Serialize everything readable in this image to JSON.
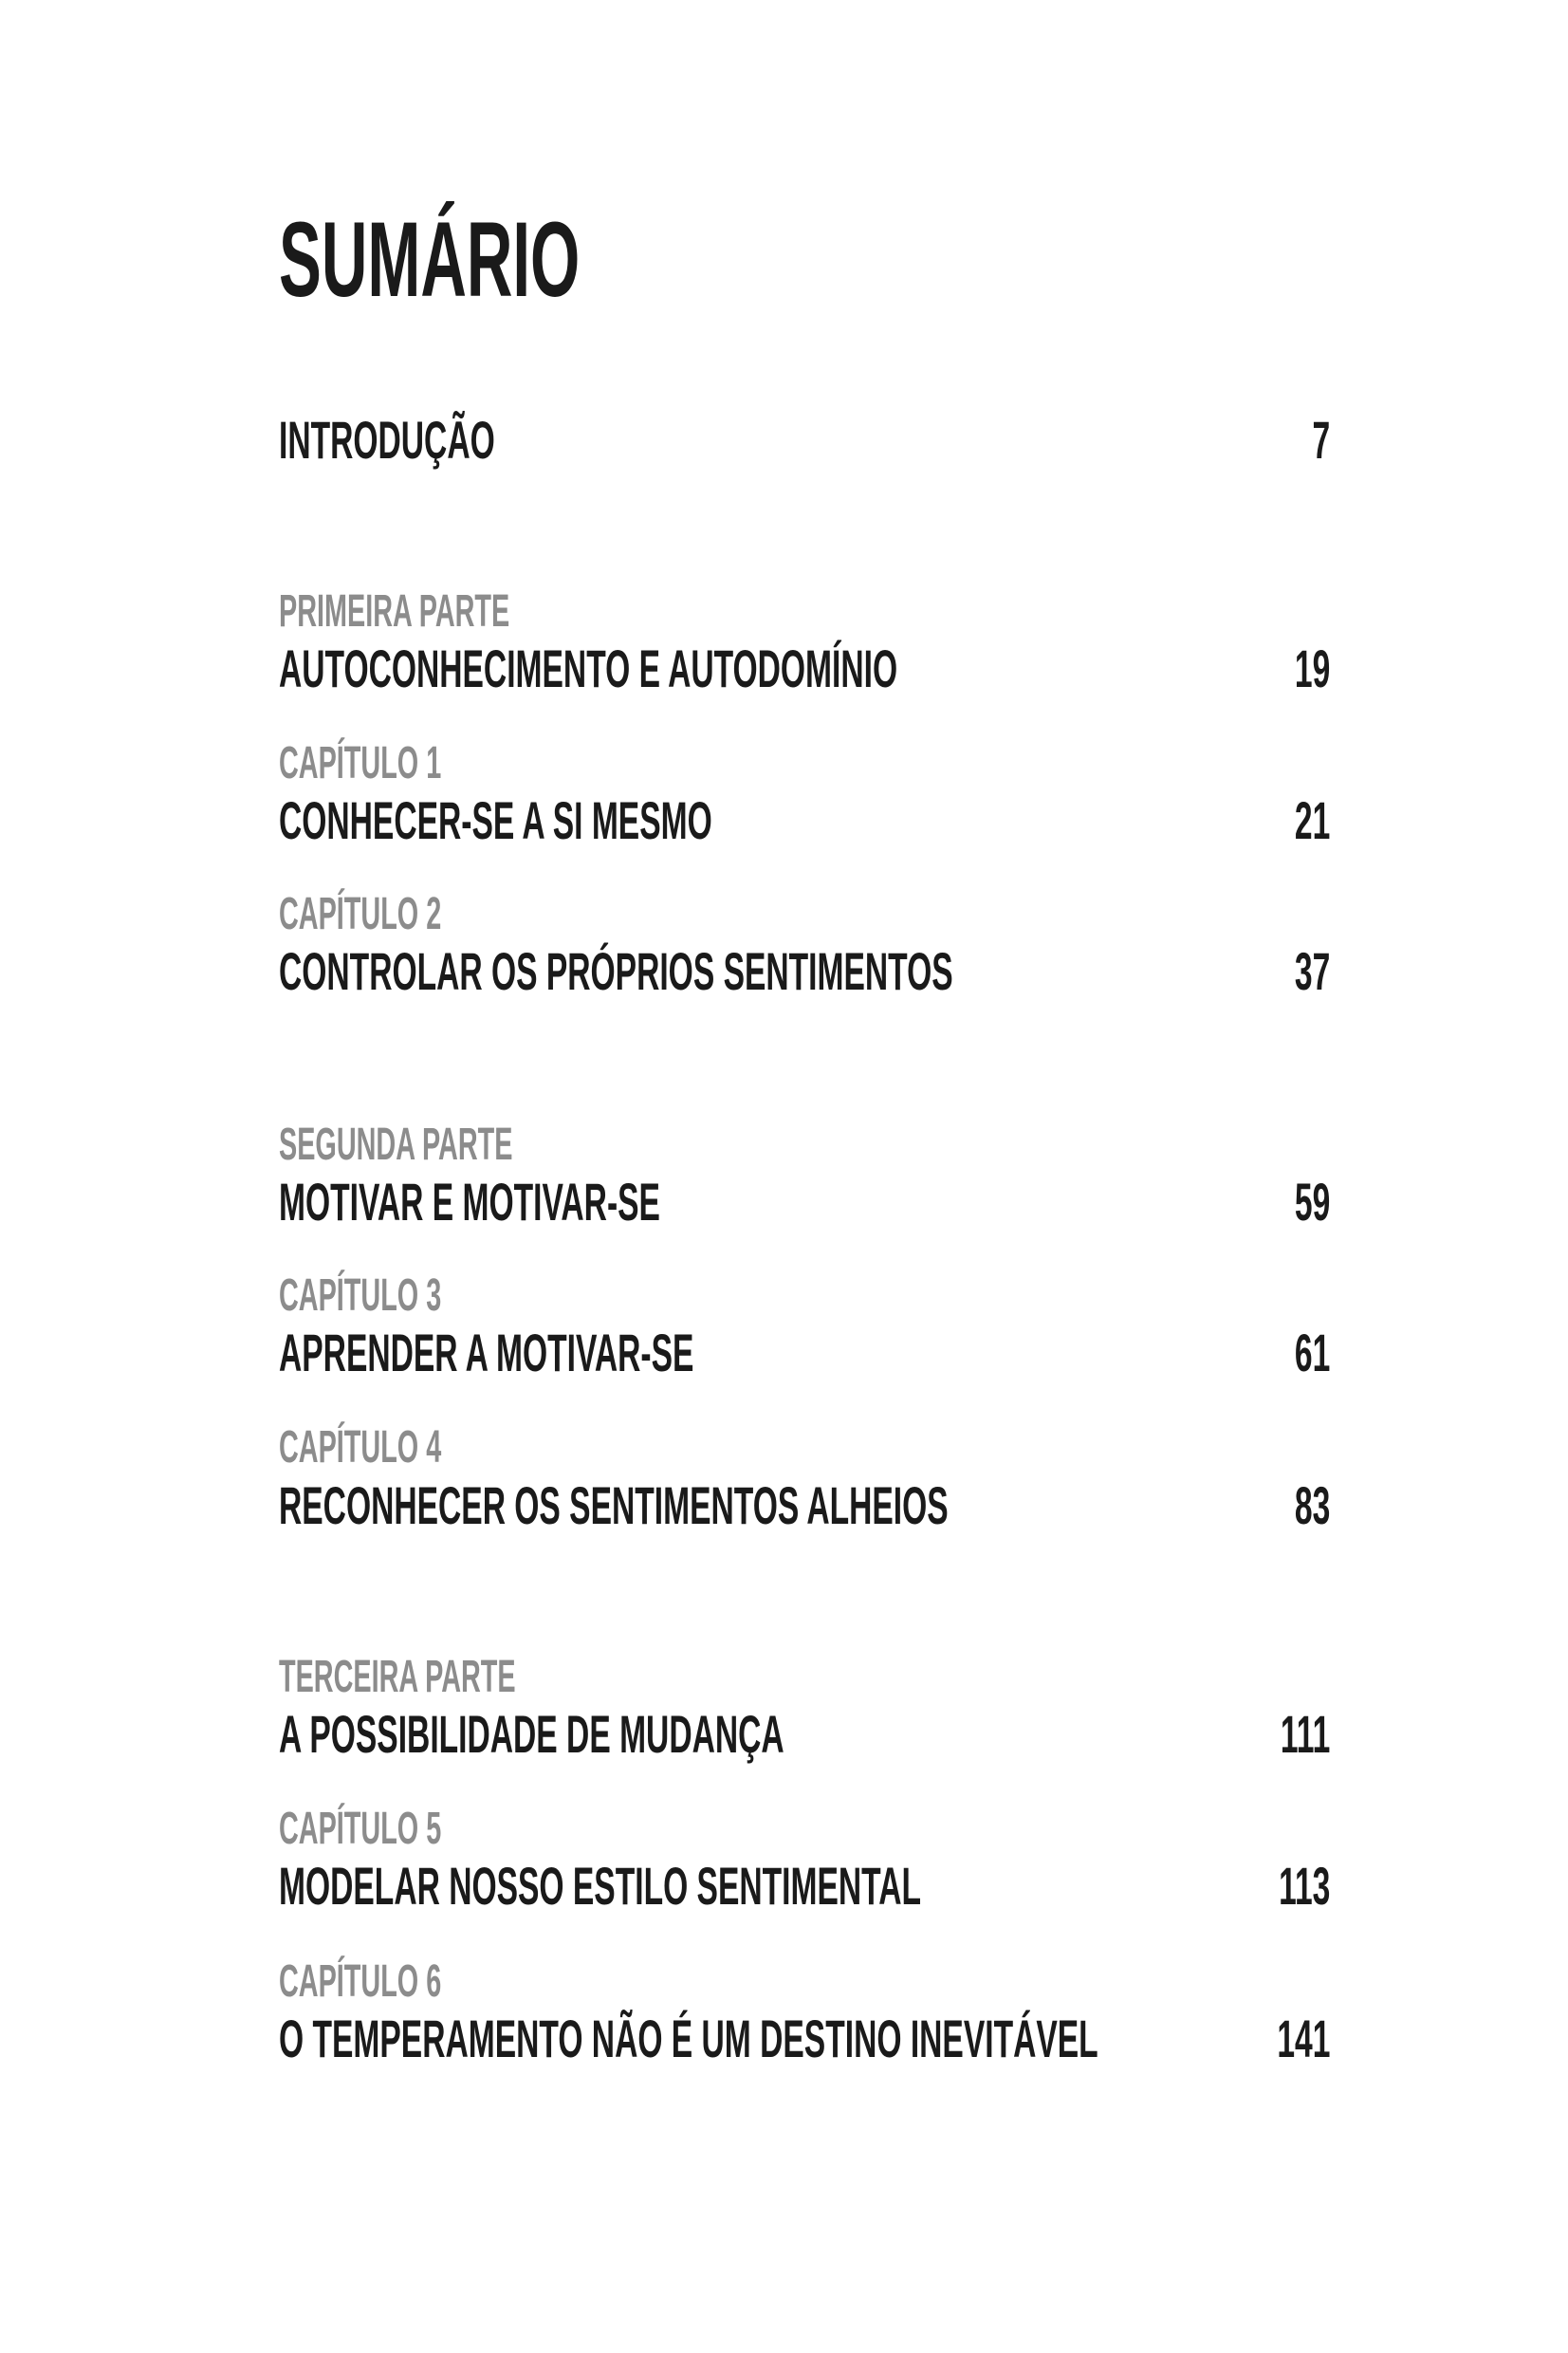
{
  "title": "SUMÁRIO",
  "intro": {
    "label": "INTRODUÇÃO",
    "page": "7"
  },
  "parts": [
    {
      "part": "PRIMEIRA PARTE",
      "title": "AUTOCONHECIMENTO E AUTODOMÍNIO",
      "page": "19",
      "chapters": [
        {
          "label": "CAPÍTULO 1",
          "title": "CONHECER-SE A SI MESMO",
          "page": "21"
        },
        {
          "label": "CAPÍTULO 2",
          "title": "CONTROLAR OS PRÓPRIOS SENTIMENTOS",
          "page": "37"
        }
      ]
    },
    {
      "part": "SEGUNDA PARTE",
      "title": "MOTIVAR E MOTIVAR-SE",
      "page": "59",
      "chapters": [
        {
          "label": "CAPÍTULO 3",
          "title": "APRENDER A MOTIVAR-SE",
          "page": "61"
        },
        {
          "label": "CAPÍTULO 4",
          "title": "RECONHECER OS SENTIMENTOS ALHEIOS",
          "page": "83"
        }
      ]
    },
    {
      "part": "TERCEIRA PARTE",
      "title": "A POSSIBILIDADE DE MUDANÇA",
      "page": "111",
      "chapters": [
        {
          "label": "CAPÍTULO 5",
          "title": "MODELAR NOSSO ESTILO SENTIMENTAL",
          "page": "113"
        },
        {
          "label": "CAPÍTULO 6",
          "title": "O TEMPERAMENTO NÃO É UM DESTINO INEVITÁVEL",
          "page": "141"
        }
      ]
    }
  ]
}
